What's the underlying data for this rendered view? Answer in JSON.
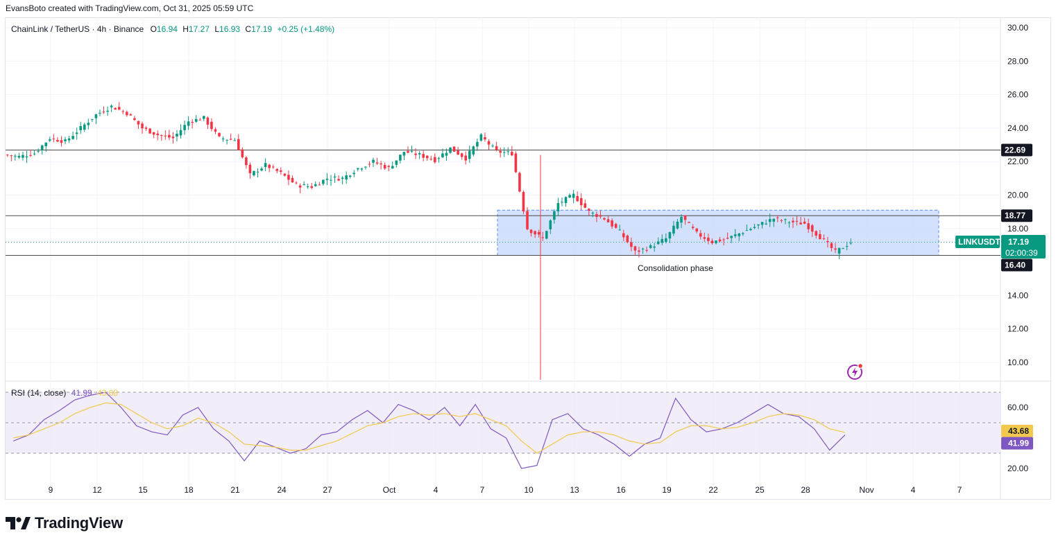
{
  "header": {
    "credit": "EvansBoto created with TradingView.com, Oct 31, 2025 05:59 UTC"
  },
  "legend": {
    "symbol": "ChainLink / TetherUS · 4h · Binance",
    "o_label": "O",
    "o": "16.94",
    "h_label": "H",
    "h": "17.27",
    "l_label": "L",
    "l": "16.93",
    "c_label": "C",
    "c": "17.19",
    "change": "+0.25 (+1.48%)"
  },
  "rsi_legend": {
    "label": "RSI (14, close)",
    "rsi": "41.99",
    "ma": "43.68"
  },
  "brand": {
    "name": "TradingView"
  },
  "annotation": {
    "text": "Consolidation phase"
  },
  "price_tags": {
    "ticker": "LINKUSDT",
    "last": "17.19",
    "countdown": "02:00:39",
    "level_high": "22.69",
    "level_mid": "18.77",
    "level_low": "16.40",
    "rsi_ma": "43.68",
    "rsi_val": "41.99"
  },
  "colors": {
    "up": "#089981",
    "down": "#f23645",
    "rsi": "#7e57c2",
    "rsi_ma": "#f2c94c",
    "box_fill": "#c8d9fb",
    "box_border": "#5b8cf0",
    "last_price": "#089981"
  },
  "chart_data": [
    {
      "type": "candlestick",
      "title": "ChainLink / TetherUS · 4h · Binance",
      "y_axis_ticks": [
        "30.00",
        "28.00",
        "26.00",
        "24.00",
        "22.00",
        "20.00",
        "18.00",
        "14.00",
        "12.00",
        "10.00"
      ],
      "x_axis_ticks": [
        "9",
        "12",
        "15",
        "18",
        "21",
        "24",
        "27",
        "Oct",
        "4",
        "7",
        "10",
        "13",
        "16",
        "19",
        "22",
        "25",
        "28",
        "Nov",
        "4",
        "7"
      ],
      "ylim": [
        9,
        30.5
      ],
      "horizontal_levels": [
        22.69,
        18.77,
        16.4
      ],
      "consolidation_box": {
        "from": "Oct 8",
        "to": "Nov 5",
        "high": 19.1,
        "low": 16.4
      },
      "last_price": 17.19,
      "series": [
        {
          "x": [
            "Sep 7",
            "Sep 8",
            "Sep 9",
            "Sep 10",
            "Sep 11",
            "Sep 12",
            "Sep 13",
            "Sep 14",
            "Sep 15",
            "Sep 16",
            "Sep 17",
            "Sep 18",
            "Sep 19",
            "Sep 20",
            "Sep 21",
            "Sep 22",
            "Sep 23",
            "Sep 24",
            "Sep 25",
            "Sep 26",
            "Sep 27",
            "Sep 28",
            "Sep 29",
            "Sep 30",
            "Oct 1",
            "Oct 2",
            "Oct 3",
            "Oct 4",
            "Oct 5",
            "Oct 6",
            "Oct 7",
            "Oct 8",
            "Oct 9",
            "Oct 10",
            "Oct 11",
            "Oct 12",
            "Oct 13",
            "Oct 14",
            "Oct 15",
            "Oct 16",
            "Oct 17",
            "Oct 18",
            "Oct 19",
            "Oct 20",
            "Oct 21",
            "Oct 22",
            "Oct 23",
            "Oct 24",
            "Oct 25",
            "Oct 26",
            "Oct 27",
            "Oct 28",
            "Oct 29",
            "Oct 30",
            "Oct 31"
          ],
          "close": [
            22.3,
            22.5,
            23.4,
            23.2,
            24.0,
            24.8,
            25.3,
            24.9,
            24.0,
            23.6,
            23.4,
            24.4,
            24.6,
            23.4,
            23.3,
            21.2,
            21.8,
            21.3,
            20.6,
            20.5,
            21.0,
            21.0,
            21.6,
            22.0,
            21.6,
            22.6,
            22.4,
            22.1,
            22.8,
            22.2,
            23.5,
            22.6,
            22.5,
            18.0,
            17.4,
            19.5,
            20.0,
            19.0,
            18.6,
            17.8,
            16.6,
            16.9,
            17.4,
            18.7,
            17.7,
            17.2,
            17.4,
            17.8,
            18.2,
            18.6,
            18.4,
            18.3,
            17.5,
            16.6,
            17.19
          ]
        }
      ]
    },
    {
      "type": "line",
      "title": "RSI (14, close)",
      "y_axis_ticks": [
        "60.00",
        "20.00"
      ],
      "ylim": [
        15,
        78
      ],
      "bands": [
        70,
        50,
        30
      ],
      "series": [
        {
          "name": "RSI",
          "values": [
            38,
            42,
            52,
            58,
            65,
            68,
            70,
            60,
            48,
            44,
            42,
            55,
            60,
            46,
            38,
            25,
            38,
            34,
            30,
            33,
            42,
            44,
            52,
            58,
            50,
            62,
            58,
            52,
            60,
            48,
            62,
            46,
            40,
            20,
            22,
            52,
            56,
            46,
            42,
            36,
            28,
            36,
            40,
            66,
            52,
            44,
            46,
            50,
            56,
            62,
            56,
            54,
            46,
            32,
            41.99
          ]
        },
        {
          "name": "RSI-based MA",
          "values": [
            40,
            42,
            46,
            50,
            56,
            60,
            63,
            62,
            56,
            50,
            46,
            48,
            53,
            50,
            44,
            36,
            35,
            34,
            32,
            32,
            35,
            38,
            43,
            48,
            50,
            54,
            56,
            55,
            56,
            54,
            56,
            52,
            48,
            38,
            30,
            36,
            42,
            44,
            44,
            42,
            38,
            36,
            37,
            44,
            48,
            48,
            46,
            47,
            50,
            54,
            56,
            55,
            52,
            46,
            43.68
          ]
        }
      ]
    }
  ]
}
